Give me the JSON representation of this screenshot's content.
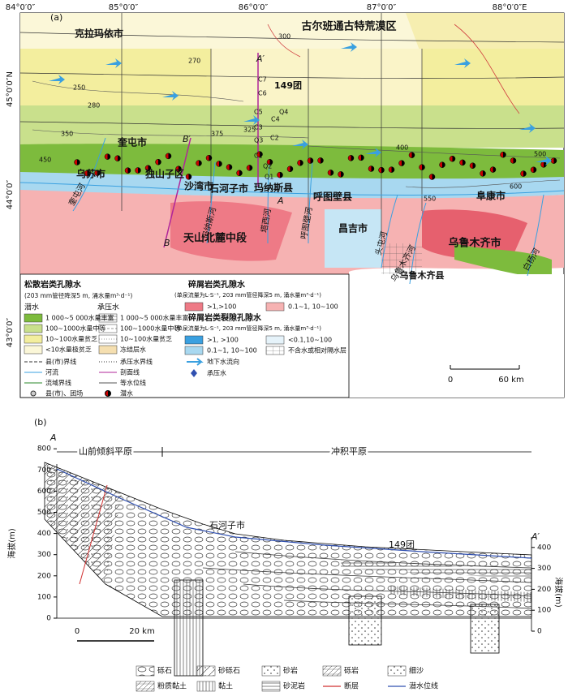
{
  "map": {
    "label": "(a)",
    "lon_ticks": [
      "84°0′0″",
      "85°0′0″",
      "86°0′0″",
      "87°0′0″",
      "88°0′0″E"
    ],
    "lat_ticks": [
      "45°0′0″N",
      "44°0′0″",
      "43°0′0″"
    ],
    "places": [
      "克拉玛依市",
      "古尔班通古特荒漠区",
      "149团",
      "奎屯市",
      "乌苏市",
      "独山子区",
      "沙湾市",
      "石河子市",
      "玛纳斯县",
      "呼图壁县",
      "阜康市",
      "昌吉市",
      "天山北麓中段",
      "乌鲁木齐市",
      "乌鲁木齐县"
    ],
    "rivers": [
      "奎屯河",
      "玛纳斯河",
      "塔西河",
      "呼图壁河",
      "头屯河",
      "乌鲁木齐河",
      "白杨河"
    ],
    "section_labels": [
      "A′",
      "A",
      "B′",
      "B"
    ],
    "wells": [
      "C7",
      "C6",
      "C5",
      "Q4",
      "C4",
      "C3",
      "C2",
      "Q3",
      "C1",
      "Q2",
      "Q1"
    ],
    "contours": [
      "250",
      "280",
      "300",
      "270",
      "325",
      "350",
      "375",
      "400",
      "450",
      "500",
      "550",
      "600"
    ],
    "scale": [
      "0",
      "60 km"
    ]
  },
  "legend": {
    "loose_title": "松散岩类孔隙水",
    "loose_note": "(203 mm管径降深5 m, 涌水量m³·d⁻¹)",
    "phreatic": "潜水",
    "confined": "承压水",
    "phreatic_items": [
      "1 000~5 000水量丰富",
      "100~1000水量中等",
      "10~100水量贫乏",
      "<10水量极贫乏"
    ],
    "confined_items": [
      "1 000~5 000水量丰富",
      "100~1000水量中等",
      "10~100水量贫乏",
      "冻结层水"
    ],
    "symbols_left": [
      "县(市)界线",
      "河流",
      "流域界线",
      "县(市)、团场"
    ],
    "symbols_right": [
      "承压水界线",
      "剖面线",
      "等水位线",
      "潜水"
    ],
    "clastic_title": "碎屑岩类孔隙水",
    "clastic_note": "(单泉流量为L·S⁻¹, 203 mm管径降深5 m, 涌水量m³·d⁻¹)",
    "clastic_items": [
      ">1,>100",
      "0.1~1, 10~100"
    ],
    "fissure_title": "碎屑岩类裂隙孔隙水",
    "fissure_note": "(单泉流量为L·S⁻¹, 203 mm管径降深5 m, 涌水量m³·d⁻¹)",
    "fissure_items": [
      ">1, >100",
      "<0.1,10~100",
      "0.1~1, 10~100",
      "不含水或相对隔水层"
    ],
    "flow": "地下水流向",
    "confined_symbol": "承压水"
  },
  "section": {
    "label": "(b)",
    "start": "A",
    "end": "A′",
    "zones": [
      "山前倾斜平原",
      "冲积平原"
    ],
    "places": [
      "石河子市",
      "149团"
    ],
    "axis_title": "海拔(m)",
    "left_ticks": [
      0,
      100,
      200,
      300,
      400,
      500,
      600,
      700,
      800
    ],
    "right_ticks": [
      0,
      100,
      200,
      300,
      400
    ],
    "scale": [
      "0",
      "20 km"
    ],
    "legend": [
      "砾石",
      "砂砾石",
      "砂岩",
      "砾岩",
      "细沙",
      "粉质黏土",
      "黏土",
      "砂泥岩",
      "断层",
      "潜水位线"
    ]
  }
}
